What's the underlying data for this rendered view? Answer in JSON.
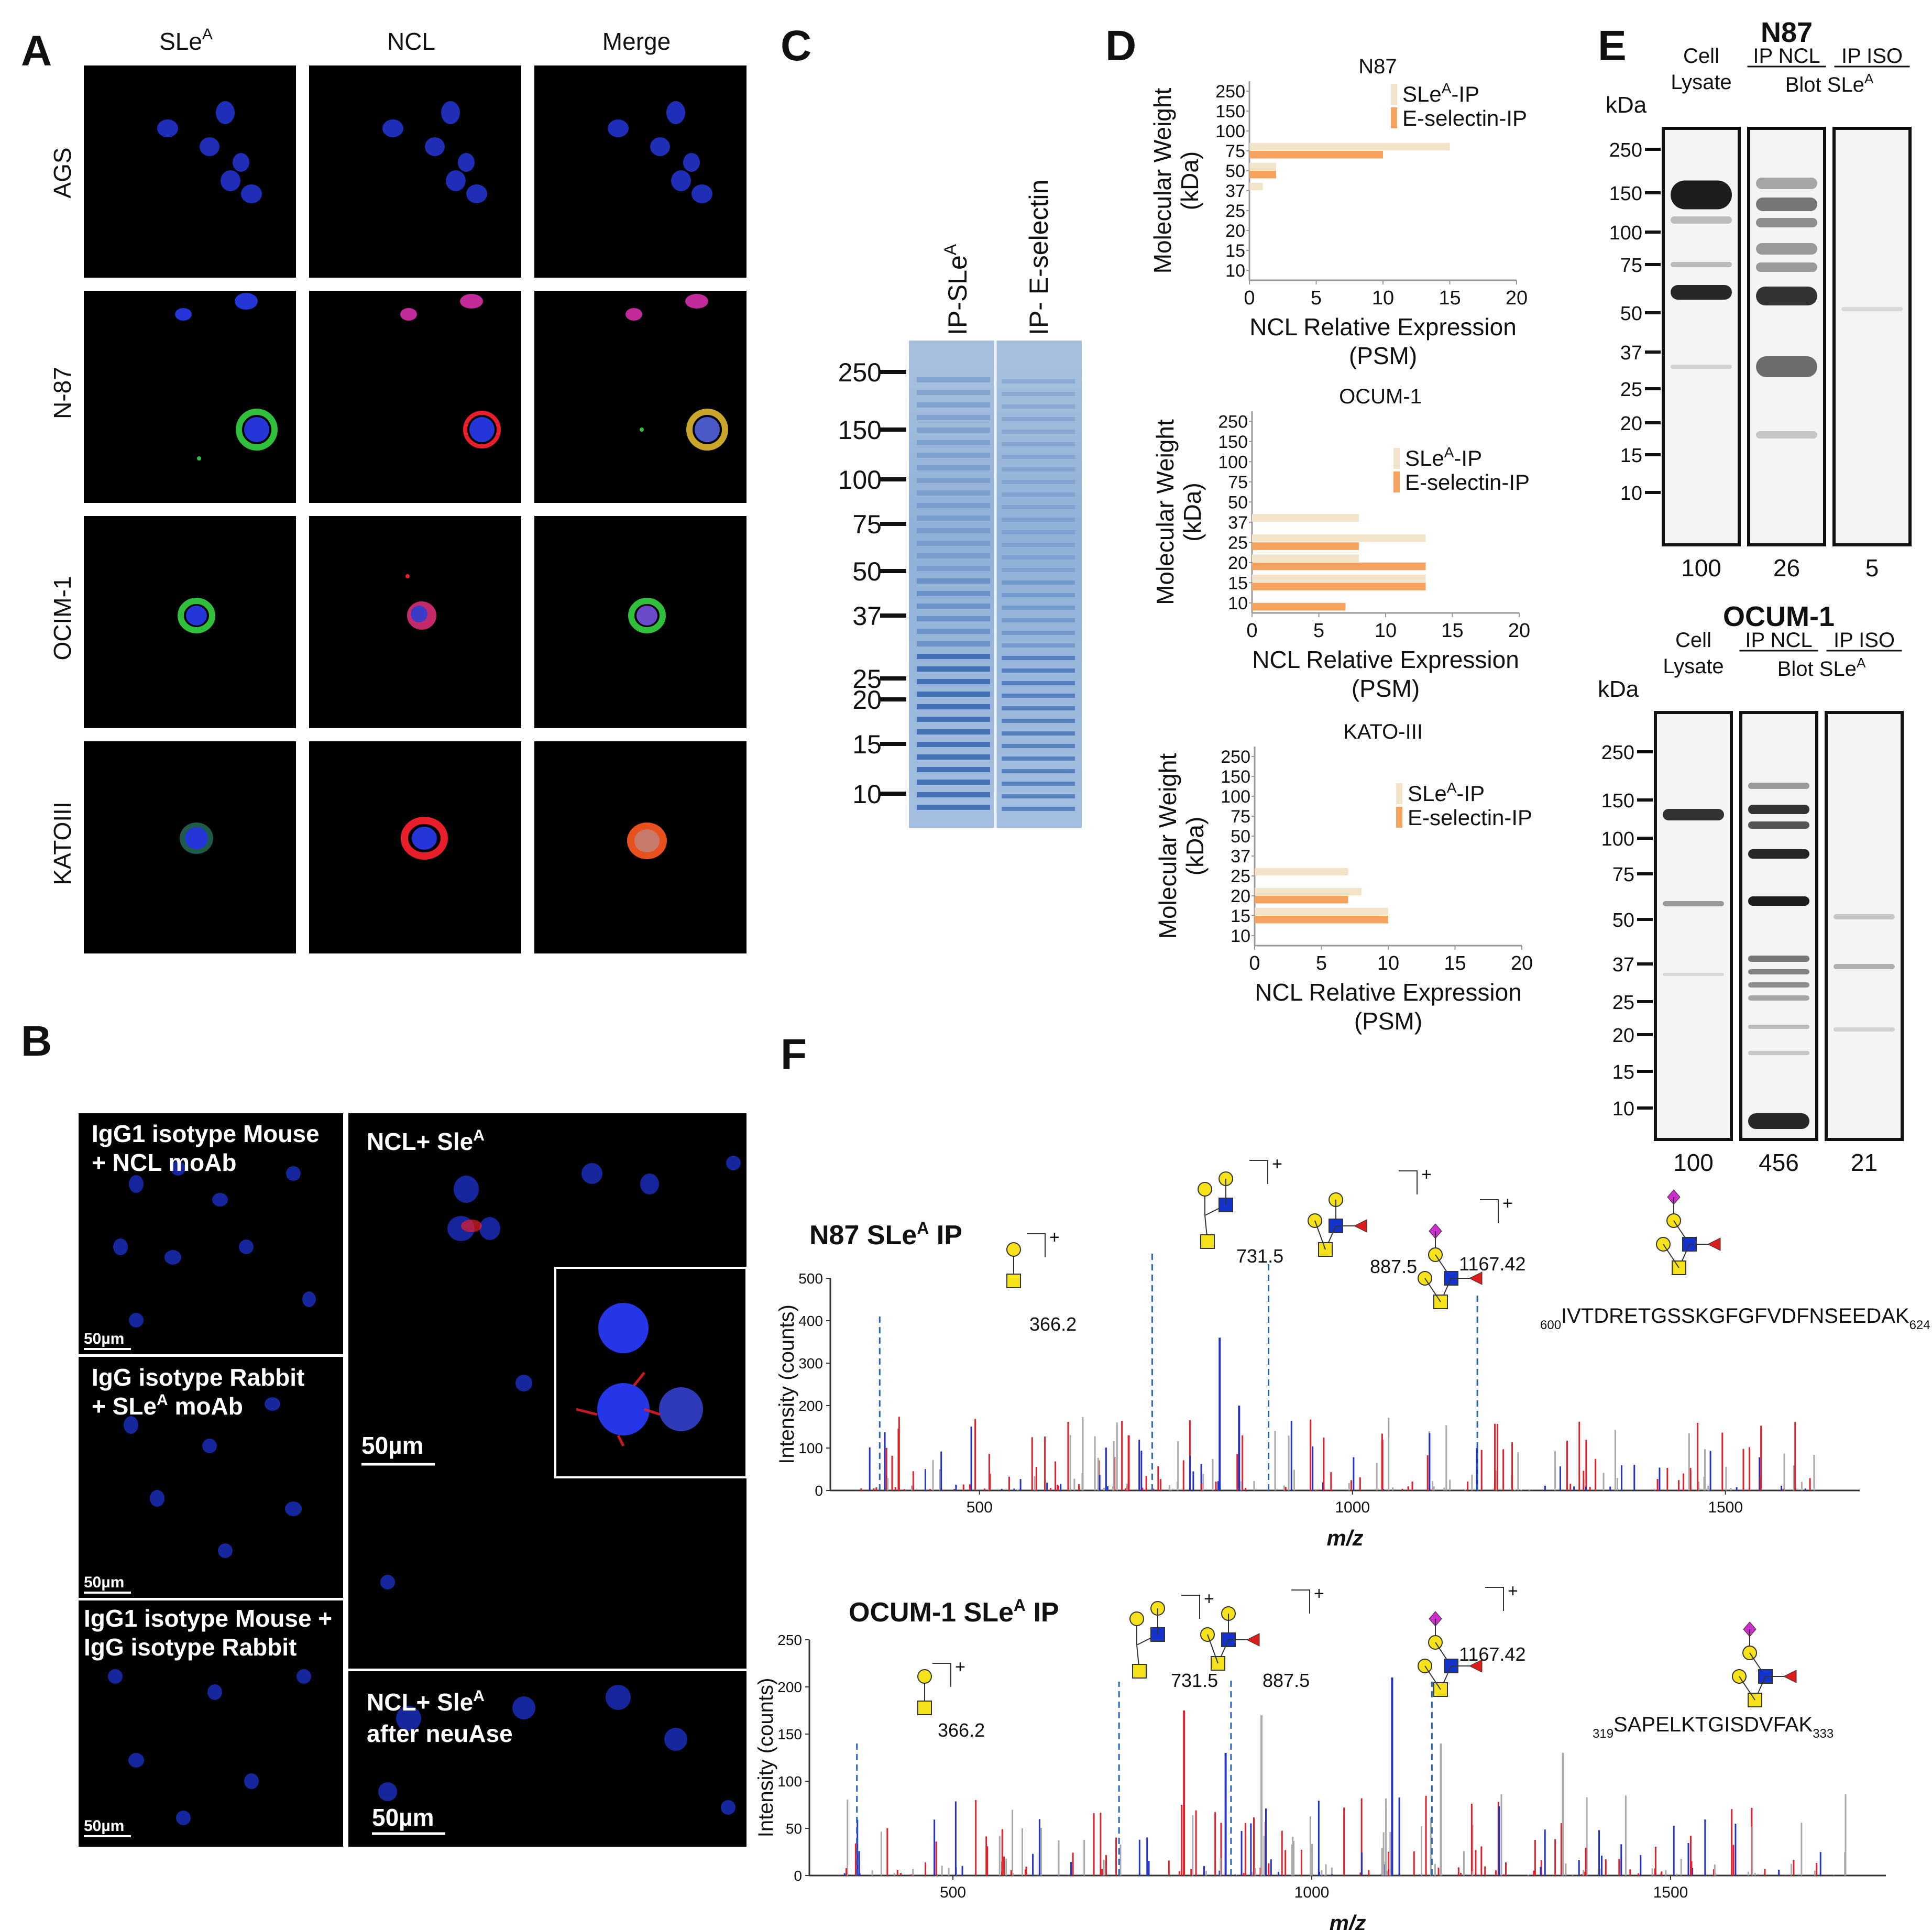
{
  "panel_letters": {
    "a": "A",
    "b": "B",
    "c": "C",
    "d": "D",
    "e": "E",
    "f": "F"
  },
  "panelA": {
    "columns": [
      "SLe",
      "NCL",
      "Merge"
    ],
    "column_superscript": "A",
    "rows": [
      "AGS",
      "N-87",
      "OCIM-1",
      "KATOIII"
    ]
  },
  "panelB": {
    "left_labels": [
      [
        "IgG1 isotype Mouse",
        "+ NCL moAb"
      ],
      [
        "IgG isotype Rabbit",
        "+ SLe",
        "A",
        " moAb"
      ],
      [
        "IgG1 isotype Mouse +",
        "IgG isotype Rabbit"
      ]
    ],
    "right_top": [
      "NCL+ Sle",
      "A"
    ],
    "right_bottom": [
      "NCL+ Sle",
      "A",
      "after neuAse"
    ],
    "scalebar": "50µm"
  },
  "panelC": {
    "lanes": [
      "IP-SLe",
      "IP- E-selectin"
    ],
    "lane_superscript": "A",
    "markers": [
      "250",
      "150",
      "100",
      "75",
      "50",
      "37",
      "25",
      "20",
      "15",
      "10"
    ]
  },
  "panelD": {
    "ylabel": [
      "Molecular Weight",
      "(kDa)"
    ],
    "xlabel": [
      "NCL Relative Expression",
      "(PSM)"
    ],
    "legend": [
      "SLe",
      "A",
      "-IP",
      "E-selectin-IP"
    ],
    "colors": {
      "sle": "#f1e4c9",
      "esel": "#f5a35f"
    }
  },
  "chart_data": [
    {
      "type": "bar",
      "orientation": "horizontal",
      "title": "N87",
      "categories": [
        "250",
        "150",
        "100",
        "75",
        "50",
        "37",
        "25",
        "20",
        "15",
        "10"
      ],
      "series": [
        {
          "name": "SLeA-IP",
          "values": [
            0,
            0,
            0,
            15,
            2,
            1,
            0,
            0,
            0,
            0
          ]
        },
        {
          "name": "E-selectin-IP",
          "values": [
            0,
            0,
            0,
            10,
            2,
            0,
            0,
            0,
            0,
            0
          ]
        }
      ],
      "xlim": [
        0,
        20
      ],
      "xticks": [
        0,
        5,
        10,
        15,
        20
      ],
      "xlabel": "NCL Relative Expression (PSM)",
      "ylabel": "Molecular Weight (kDa)"
    },
    {
      "type": "bar",
      "orientation": "horizontal",
      "title": "OCUM-1",
      "categories": [
        "250",
        "150",
        "100",
        "75",
        "50",
        "37",
        "25",
        "20",
        "15",
        "10"
      ],
      "series": [
        {
          "name": "SLeA-IP",
          "values": [
            0,
            0,
            0,
            0,
            0,
            8,
            13,
            8,
            13,
            0
          ]
        },
        {
          "name": "E-selectin-IP",
          "values": [
            0,
            0,
            0,
            0,
            0,
            0,
            8,
            13,
            13,
            7
          ]
        }
      ],
      "xlim": [
        0,
        20
      ],
      "xticks": [
        0,
        5,
        10,
        15,
        20
      ],
      "xlabel": "NCL Relative Expression (PSM)",
      "ylabel": "Molecular Weight (kDa)"
    },
    {
      "type": "bar",
      "orientation": "horizontal",
      "title": "KATO-III",
      "categories": [
        "250",
        "150",
        "100",
        "75",
        "50",
        "37",
        "25",
        "20",
        "15",
        "10"
      ],
      "series": [
        {
          "name": "SLeA-IP",
          "values": [
            0,
            0,
            0,
            0,
            0,
            0,
            7,
            8,
            10,
            0
          ]
        },
        {
          "name": "E-selectin-IP",
          "values": [
            0,
            0,
            0,
            0,
            0,
            0,
            0,
            7,
            10,
            0
          ]
        }
      ],
      "xlim": [
        0,
        20
      ],
      "xticks": [
        0,
        5,
        10,
        15,
        20
      ],
      "xlabel": "NCL Relative Expression (PSM)",
      "ylabel": "Molecular Weight (kDa)"
    },
    {
      "type": "scatter",
      "title": "N87 SLeA IP",
      "annotations_mz": [
        366.2,
        731.5,
        887.5,
        1167.42
      ],
      "peptide": "IVTDRETGSSKGFGFVDFNSEEDAK",
      "peptide_start": "600",
      "peptide_end": "624",
      "xlabel": "m/z",
      "ylabel": "Intensity (counts)",
      "xticks": [
        500,
        1000,
        1500
      ],
      "yticks": [
        0,
        100,
        200,
        300,
        400,
        500
      ]
    },
    {
      "type": "scatter",
      "title": "OCUM-1 SLeA IP",
      "annotations_mz": [
        366.2,
        731.5,
        887.5,
        1167.42
      ],
      "peptide": "SAPELKTGISDVFAK",
      "peptide_start": "319",
      "peptide_end": "333",
      "xlabel": "m/z",
      "ylabel": "Intensity (counts)",
      "xticks": [
        500,
        1000,
        1500
      ],
      "yticks": [
        0,
        50,
        100,
        150,
        200,
        250
      ]
    }
  ],
  "panelE": {
    "n87": {
      "title": "N87",
      "kda": "kDa",
      "lane1": [
        "Cell",
        "Lysate"
      ],
      "ip_ncl": "IP NCL",
      "ip_iso": "IP ISO",
      "blot": [
        "Blot SLe",
        "A"
      ],
      "markers": [
        "250",
        "150",
        "100",
        "75",
        "50",
        "37",
        "25",
        "20",
        "15",
        "10"
      ],
      "values": [
        "100",
        "26",
        "5"
      ]
    },
    "ocum": {
      "title": "OCUM-1",
      "kda": "kDa",
      "lane1": [
        "Cell",
        "Lysate"
      ],
      "ip_ncl": "IP NCL",
      "ip_iso": "IP ISO",
      "blot": [
        "Blot SLe",
        "A"
      ],
      "markers": [
        "250",
        "150",
        "100",
        "75",
        "50",
        "37",
        "25",
        "20",
        "15",
        "10"
      ],
      "values": [
        "100",
        "456",
        "21"
      ]
    }
  },
  "panelF": {
    "spec1_title": [
      "N87 SLe",
      "A",
      " IP"
    ],
    "spec2_title": [
      "OCUM-1 SLe",
      "A",
      " IP"
    ],
    "glycan_labels": [
      "366.2",
      "731.5",
      "887.5",
      "1167.42"
    ],
    "xlabel": "m/z",
    "ylabel": "Intensity (counts)",
    "plus": "+"
  },
  "colors": {
    "dapi": "#2536d8",
    "green": "#2fbf3a",
    "red": "#e81e2a",
    "pink": "#e23aa8",
    "gel": "#6d93c9",
    "glyc_yellow": "#f5e21a",
    "glyc_blue": "#1433cc",
    "glyc_red": "#d91c1c",
    "glyc_magenta": "#cc2ecc"
  }
}
